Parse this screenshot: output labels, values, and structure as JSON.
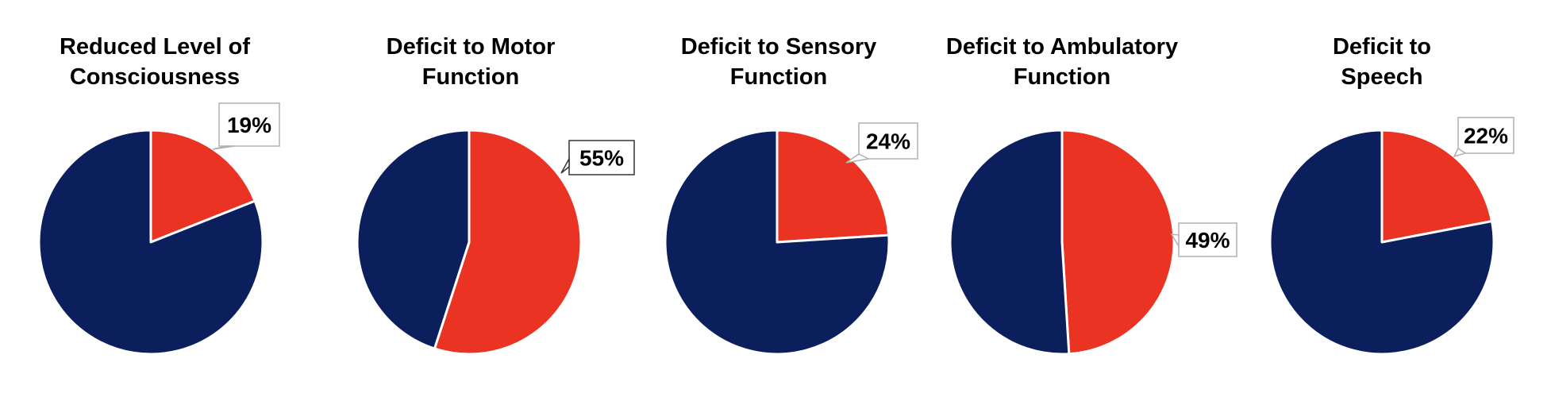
{
  "chart_data": [
    {
      "type": "pie",
      "title": [
        "Reduced Level of",
        "Consciousness"
      ],
      "slices": [
        {
          "value": 19
        },
        {
          "value": 81
        }
      ],
      "labels": [
        "19%"
      ],
      "colors": [
        "#EA3323",
        "#0B1F5C"
      ]
    },
    {
      "type": "pie",
      "title": [
        "Deficit to Motor",
        "Function"
      ],
      "slices": [
        {
          "value": 55
        },
        {
          "value": 45
        }
      ],
      "labels": [
        "55%"
      ],
      "colors": [
        "#EA3323",
        "#0B1F5C"
      ]
    },
    {
      "type": "pie",
      "title": [
        "Deficit to Sensory",
        "Function"
      ],
      "slices": [
        {
          "value": 24
        },
        {
          "value": 76
        }
      ],
      "labels": [
        "24%"
      ],
      "colors": [
        "#EA3323",
        "#0B1F5C"
      ]
    },
    {
      "type": "pie",
      "title": [
        "Deficit to Ambulatory",
        "Function"
      ],
      "slices": [
        {
          "value": 49
        },
        {
          "value": 51
        }
      ],
      "labels": [
        "49%"
      ],
      "colors": [
        "#EA3323",
        "#0B1F5C"
      ]
    },
    {
      "type": "pie",
      "title": [
        "Deficit to",
        "Speech"
      ],
      "slices": [
        {
          "value": 22
        },
        {
          "value": 78
        }
      ],
      "labels": [
        "22%"
      ],
      "colors": [
        "#EA3323",
        "#0B1F5C"
      ]
    }
  ]
}
